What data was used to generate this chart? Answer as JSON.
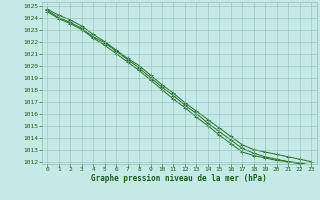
{
  "x": [
    0,
    1,
    2,
    3,
    4,
    5,
    6,
    7,
    8,
    9,
    10,
    11,
    12,
    13,
    14,
    15,
    16,
    17,
    18,
    19,
    20,
    21,
    22,
    23
  ],
  "line1": [
    1024.6,
    1024.0,
    1023.6,
    1023.1,
    1022.4,
    1021.9,
    1021.2,
    1020.5,
    1019.8,
    1019.0,
    1018.2,
    1017.5,
    1016.7,
    1016.0,
    1015.2,
    1014.5,
    1013.8,
    1013.1,
    1012.7,
    1012.4,
    1012.2,
    1012.0,
    1011.9,
    1011.7
  ],
  "line2": [
    1024.5,
    1023.9,
    1023.5,
    1023.0,
    1022.3,
    1021.7,
    1021.0,
    1020.3,
    1019.6,
    1018.8,
    1018.0,
    1017.2,
    1016.5,
    1015.7,
    1015.0,
    1014.2,
    1013.5,
    1012.8,
    1012.5,
    1012.3,
    1012.1,
    1012.0,
    1011.8,
    1011.7
  ],
  "line3": [
    1024.7,
    1024.2,
    1023.8,
    1023.3,
    1022.6,
    1022.0,
    1021.3,
    1020.6,
    1020.0,
    1019.2,
    1018.4,
    1017.7,
    1016.9,
    1016.2,
    1015.5,
    1014.8,
    1014.1,
    1013.4,
    1013.0,
    1012.8,
    1012.6,
    1012.4,
    1012.2,
    1012.0
  ],
  "line_color": "#2a6e2a",
  "bg_color": "#c5eae6",
  "grid_color": "#90c0bc",
  "text_color": "#1a5c1a",
  "xlabel": "Graphe pression niveau de la mer (hPa)",
  "ylim": [
    1012,
    1025
  ],
  "xlim": [
    0,
    23
  ],
  "yticks": [
    1012,
    1013,
    1014,
    1015,
    1016,
    1017,
    1018,
    1019,
    1020,
    1021,
    1022,
    1023,
    1024,
    1025
  ],
  "xticks": [
    0,
    1,
    2,
    3,
    4,
    5,
    6,
    7,
    8,
    9,
    10,
    11,
    12,
    13,
    14,
    15,
    16,
    17,
    18,
    19,
    20,
    21,
    22,
    23
  ]
}
